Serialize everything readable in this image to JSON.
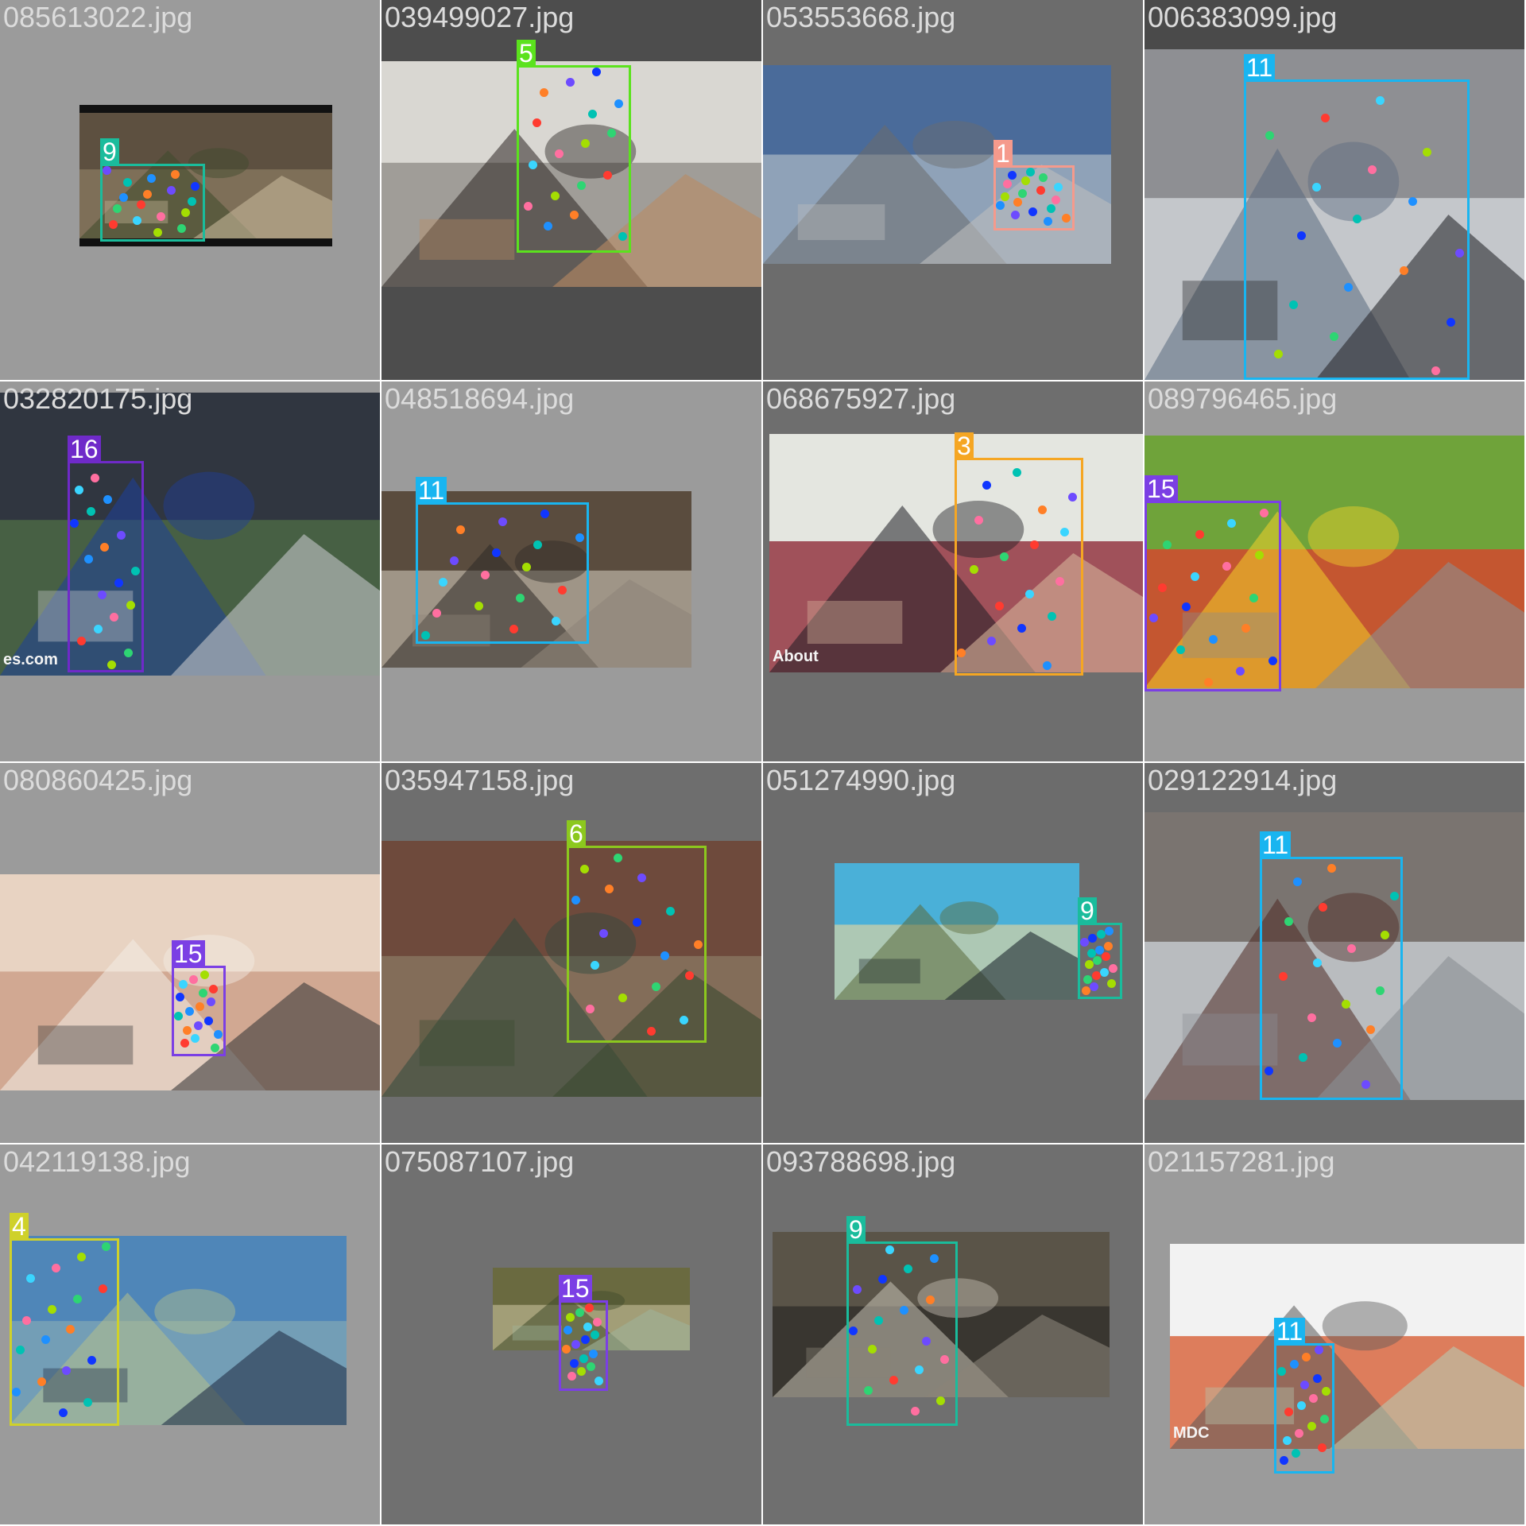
{
  "tiles": [
    {
      "file": "085613022.jpg",
      "id": "9",
      "color": "#1abc9c",
      "bg": "#9b9b9b",
      "photo": {
        "colors": [
          "#5d5040",
          "#8a7a60",
          "#3e4a2c",
          "#c7b89a"
        ],
        "letterbox": true
      }
    },
    {
      "file": "039499027.jpg",
      "id": "5",
      "color": "#5be21d",
      "bg": "#4d4d4d",
      "photo": {
        "colors": [
          "#d9d7d2",
          "#8c8a84",
          "#2b2523",
          "#b98b62"
        ]
      }
    },
    {
      "file": "053553668.jpg",
      "id": "1",
      "color": "#f59a8c",
      "bg": "#6c6c6c",
      "photo": {
        "colors": [
          "#4a6b9a",
          "#a7b4c2",
          "#6c6c6c",
          "#bdbdbd"
        ]
      }
    },
    {
      "file": "006383099.jpg",
      "id": "11",
      "color": "#19b5f0",
      "bg": "#4a4a4a",
      "photo": {
        "colors": [
          "#8e8f93",
          "#d6d9de",
          "#5a6a80",
          "#2a2a2e"
        ]
      }
    },
    {
      "file": "032820175.jpg",
      "id": "16",
      "color": "#6f2ac9",
      "bg": "#999999",
      "photo": {
        "colors": [
          "#303640",
          "#4f6f45",
          "#1e3f9a",
          "#c5c7ca"
        ],
        "watermark": "es.com"
      }
    },
    {
      "file": "048518694.jpg",
      "id": "11",
      "color": "#19b5f0",
      "bg": "#9b9b9b",
      "photo": {
        "colors": [
          "#5a4c3e",
          "#b7ada0",
          "#2e2a26",
          "#8f8579"
        ]
      }
    },
    {
      "file": "068675927.jpg",
      "id": "3",
      "color": "#f5a623",
      "bg": "#6e6e6e",
      "photo": {
        "colors": [
          "#e4e6e0",
          "#8a1f2e",
          "#1e1e24",
          "#d6b49a"
        ],
        "watermark": "About"
      }
    },
    {
      "file": "089796465.jpg",
      "id": "15",
      "color": "#7b3fe4",
      "bg": "#9b9b9b",
      "photo": {
        "colors": [
          "#6fa33a",
          "#e03c2e",
          "#f2d22a",
          "#8d8d8d"
        ]
      }
    },
    {
      "file": "080860425.jpg",
      "id": "15",
      "color": "#7b3fe4",
      "bg": "#9b9b9b",
      "photo": {
        "colors": [
          "#e8d3c2",
          "#c99a82",
          "#f3ede6",
          "#3b3b3b"
        ]
      }
    },
    {
      "file": "035947158.jpg",
      "id": "6",
      "color": "#8cc81e",
      "bg": "#6e6e6e",
      "photo": {
        "colors": [
          "#6e4a3c",
          "#8b7a63",
          "#2f4a3e",
          "#3a4a30"
        ]
      }
    },
    {
      "file": "051274990.jpg",
      "id": "9",
      "color": "#1abc9c",
      "bg": "#6c6c6c",
      "photo": {
        "colors": [
          "#4ab0d8",
          "#cfd0a8",
          "#5a6a3a",
          "#202a30"
        ]
      }
    },
    {
      "file": "029122914.jpg",
      "id": "11",
      "color": "#19b5f0",
      "bg": "#6c6c6c",
      "photo": {
        "colors": [
          "#7a7470",
          "#cfd4da",
          "#4e2a24",
          "#8b8f95"
        ]
      }
    },
    {
      "file": "042119138.jpg",
      "id": "4",
      "color": "#cfd12a",
      "bg": "#9b9b9b",
      "photo": {
        "colors": [
          "#4f86b8",
          "#7fa6b6",
          "#b5c08a",
          "#233048"
        ]
      }
    },
    {
      "file": "075087107.jpg",
      "id": "15",
      "color": "#7b3fe4",
      "bg": "#707070",
      "photo": {
        "colors": [
          "#6a6a40",
          "#b6b08a",
          "#3f4a2a",
          "#9fb39a"
        ]
      }
    },
    {
      "file": "093788698.jpg",
      "id": "9",
      "color": "#1abc9c",
      "bg": "#6f6f6f",
      "photo": {
        "colors": [
          "#5a5448",
          "#2f2c28",
          "#c8c2b6",
          "#8a8478"
        ]
      }
    },
    {
      "file": "021157281.jpg",
      "id": "11",
      "color": "#19b5f0",
      "bg": "#9b9b9b",
      "photo": {
        "colors": [
          "#f2f2f2",
          "#d5562a",
          "#5a5a5a",
          "#b7c9b0"
        ],
        "watermark": "MDC"
      }
    }
  ]
}
